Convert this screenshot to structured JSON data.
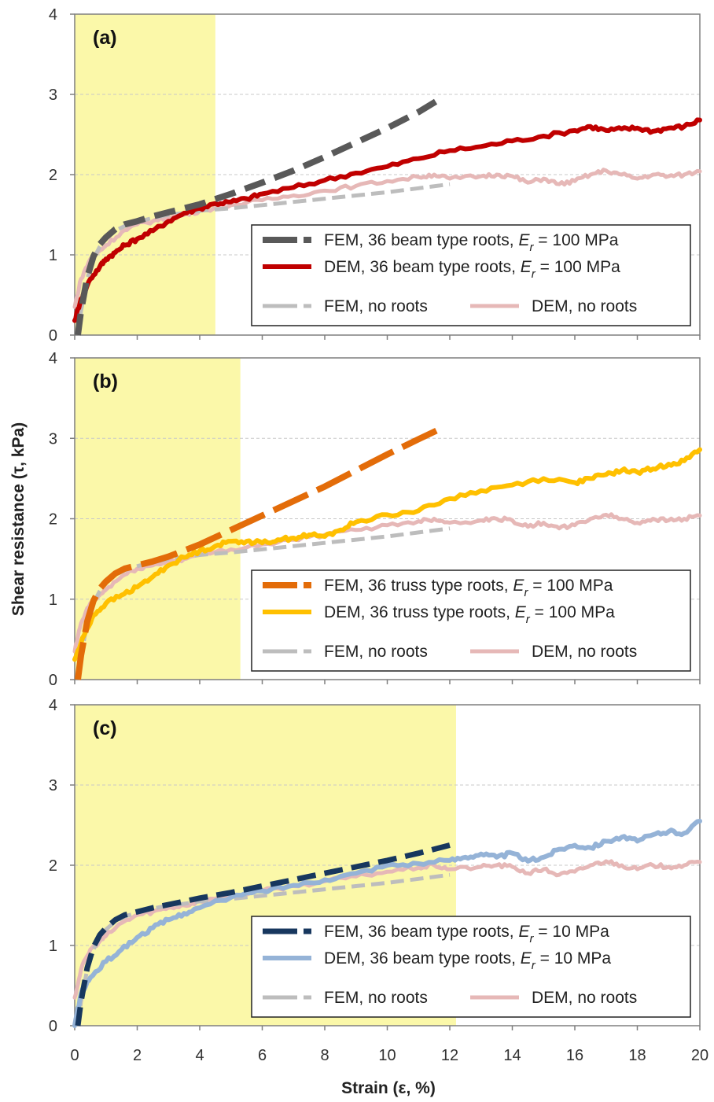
{
  "figure": {
    "ylabel": "Shear resistance (τ, kPa)",
    "xlabel": "Strain (ε, %)"
  },
  "chart_data": [
    {
      "type": "line",
      "panel_label": "(a)",
      "xlim": [
        0,
        20
      ],
      "ylim": [
        0,
        4
      ],
      "x_ticks": [
        0,
        2,
        4,
        6,
        8,
        10,
        12,
        14,
        16,
        18,
        20
      ],
      "y_ticks": [
        0,
        1,
        2,
        3,
        4
      ],
      "grid": "horizontal dashed",
      "highlight_band": {
        "x_from": 0,
        "x_to": 4.5,
        "color": "#fbf8a9"
      },
      "legend_position": "lower-right",
      "series": [
        {
          "legend_text": "FEM, 36 beam type roots, ",
          "legend_suffix": " = 100 MPa",
          "legend_row": 0,
          "legend_col": 0,
          "color": "#595959",
          "style": "fem",
          "width": 8,
          "x": [
            0.1,
            0.2,
            0.4,
            0.6,
            0.8,
            1.0,
            1.3,
            1.6,
            2.0,
            2.5,
            3.0,
            3.5,
            4.0,
            5.0,
            6.0,
            7.0,
            8.0,
            9.0,
            10.0,
            11.0,
            11.8
          ],
          "y": [
            0.0,
            0.3,
            0.72,
            0.98,
            1.13,
            1.22,
            1.32,
            1.38,
            1.42,
            1.48,
            1.53,
            1.58,
            1.63,
            1.76,
            1.9,
            2.05,
            2.22,
            2.4,
            2.58,
            2.78,
            2.97
          ]
        },
        {
          "legend_text": "DEM, 36 beam type roots, ",
          "legend_suffix": " = 100 MPa",
          "legend_row": 1,
          "legend_col": 0,
          "color": "#c00000",
          "style": "dem",
          "width": 6,
          "x": [
            0,
            0.2,
            0.5,
            0.8,
            1.0,
            1.3,
            1.6,
            2.0,
            2.5,
            3.0,
            3.5,
            4.0,
            4.5,
            5.0,
            5.5,
            6.0,
            7.0,
            8.0,
            9.0,
            10.0,
            11.0,
            12.0,
            13.0,
            14.0,
            15.0,
            16.0,
            16.5,
            17.0,
            17.5,
            18.0,
            18.5,
            19.0,
            19.5,
            20.0
          ],
          "y": [
            0.18,
            0.45,
            0.7,
            0.85,
            0.95,
            1.03,
            1.12,
            1.2,
            1.3,
            1.42,
            1.52,
            1.58,
            1.64,
            1.66,
            1.7,
            1.76,
            1.84,
            1.93,
            2.02,
            2.1,
            2.2,
            2.3,
            2.35,
            2.42,
            2.48,
            2.55,
            2.6,
            2.55,
            2.57,
            2.58,
            2.54,
            2.58,
            2.6,
            2.68
          ]
        },
        {
          "legend_text": "FEM, no roots",
          "legend_suffix": "",
          "legend_row": 2,
          "legend_col": 0,
          "color": "#bdbdbd",
          "style": "fem",
          "width": 5,
          "x": [
            0.1,
            0.2,
            0.4,
            0.6,
            0.8,
            1.0,
            1.3,
            1.6,
            2.0,
            2.5,
            3.0,
            3.5,
            4.0,
            5.0,
            6.0,
            7.0,
            8.0,
            9.0,
            10.0,
            11.0,
            12.0
          ],
          "y": [
            0.0,
            0.3,
            0.7,
            0.95,
            1.1,
            1.2,
            1.3,
            1.36,
            1.41,
            1.46,
            1.5,
            1.52,
            1.55,
            1.58,
            1.62,
            1.66,
            1.7,
            1.74,
            1.78,
            1.83,
            1.88
          ]
        },
        {
          "legend_text": "DEM, no roots",
          "legend_suffix": "",
          "legend_row": 2,
          "legend_col": 1,
          "color": "#e6b8b7",
          "style": "dem",
          "width": 5,
          "x": [
            0,
            0.2,
            0.5,
            0.8,
            1.0,
            1.5,
            2.0,
            2.5,
            3.0,
            3.5,
            4.0,
            5.0,
            6.0,
            7.0,
            8.0,
            9.0,
            10.0,
            11.0,
            11.5,
            12.0,
            13.0,
            13.5,
            14.0,
            14.5,
            15.0,
            15.5,
            16.0,
            16.5,
            17.0,
            17.5,
            18.0,
            18.5,
            19.0,
            19.5,
            20.0
          ],
          "y": [
            0.35,
            0.7,
            0.95,
            1.05,
            1.12,
            1.28,
            1.38,
            1.42,
            1.47,
            1.5,
            1.55,
            1.62,
            1.68,
            1.74,
            1.8,
            1.86,
            1.92,
            1.97,
            2.0,
            1.95,
            1.98,
            2.0,
            1.98,
            1.9,
            1.95,
            1.88,
            1.92,
            2.0,
            2.05,
            2.0,
            1.95,
            2.0,
            1.98,
            2.0,
            2.04
          ]
        }
      ]
    },
    {
      "type": "line",
      "panel_label": "(b)",
      "xlim": [
        0,
        20
      ],
      "ylim": [
        0,
        4
      ],
      "x_ticks": [
        0,
        2,
        4,
        6,
        8,
        10,
        12,
        14,
        16,
        18,
        20
      ],
      "y_ticks": [
        0,
        1,
        2,
        3,
        4
      ],
      "grid": "horizontal dashed",
      "highlight_band": {
        "x_from": 0,
        "x_to": 5.3,
        "color": "#fbf8a9"
      },
      "legend_position": "lower-right",
      "series": [
        {
          "legend_text": "FEM, 36 truss type roots, ",
          "legend_suffix": " = 100 MPa",
          "legend_row": 0,
          "legend_col": 0,
          "color": "#e36c09",
          "style": "fem_long",
          "width": 8,
          "x": [
            0.1,
            0.2,
            0.4,
            0.6,
            0.8,
            1.0,
            1.3,
            1.6,
            2.0,
            2.5,
            3.0,
            4.0,
            5.0,
            6.0,
            7.0,
            8.0,
            9.0,
            10.0,
            11.0,
            11.6
          ],
          "y": [
            0.0,
            0.3,
            0.72,
            0.98,
            1.13,
            1.22,
            1.32,
            1.38,
            1.42,
            1.47,
            1.53,
            1.68,
            1.86,
            2.04,
            2.22,
            2.4,
            2.6,
            2.8,
            2.99,
            3.1
          ]
        },
        {
          "legend_text": "DEM, 36 truss type roots, ",
          "legend_suffix": " = 100 MPa",
          "legend_row": 1,
          "legend_col": 0,
          "color": "#ffc000",
          "style": "dem",
          "width": 6,
          "x": [
            0,
            0.3,
            0.6,
            1.0,
            1.5,
            2.0,
            2.5,
            3.0,
            3.5,
            4.0,
            4.5,
            5.0,
            5.5,
            6.0,
            6.5,
            7.0,
            7.5,
            8.0,
            8.5,
            9.0,
            10.0,
            11.0,
            12.0,
            13.0,
            14.0,
            15.0,
            16.0,
            16.5,
            17.0,
            17.5,
            18.0,
            18.5,
            19.0,
            19.5,
            20.0
          ],
          "y": [
            0.25,
            0.55,
            0.8,
            0.95,
            1.05,
            1.15,
            1.28,
            1.42,
            1.52,
            1.6,
            1.66,
            1.72,
            1.72,
            1.7,
            1.74,
            1.76,
            1.8,
            1.78,
            1.86,
            1.96,
            2.05,
            2.1,
            2.25,
            2.35,
            2.42,
            2.5,
            2.45,
            2.5,
            2.55,
            2.6,
            2.58,
            2.62,
            2.68,
            2.72,
            2.86
          ]
        },
        {
          "legend_text": "FEM, no roots",
          "legend_suffix": "",
          "legend_row": 2,
          "legend_col": 0,
          "color": "#bdbdbd",
          "style": "fem",
          "width": 5,
          "x": [
            0.1,
            0.2,
            0.4,
            0.6,
            0.8,
            1.0,
            1.3,
            1.6,
            2.0,
            2.5,
            3.0,
            3.5,
            4.0,
            5.0,
            6.0,
            7.0,
            8.0,
            9.0,
            10.0,
            11.0,
            12.0
          ],
          "y": [
            0.0,
            0.3,
            0.7,
            0.95,
            1.1,
            1.2,
            1.3,
            1.36,
            1.41,
            1.46,
            1.5,
            1.52,
            1.55,
            1.58,
            1.62,
            1.66,
            1.7,
            1.74,
            1.78,
            1.83,
            1.88
          ]
        },
        {
          "legend_text": "DEM, no roots",
          "legend_suffix": "",
          "legend_row": 2,
          "legend_col": 1,
          "color": "#e6b8b7",
          "style": "dem",
          "width": 5,
          "x": [
            0,
            0.2,
            0.5,
            0.8,
            1.0,
            1.5,
            2.0,
            2.5,
            3.0,
            3.5,
            4.0,
            5.0,
            6.0,
            7.0,
            8.0,
            9.0,
            10.0,
            11.0,
            11.5,
            12.0,
            13.0,
            13.5,
            14.0,
            14.5,
            15.0,
            15.5,
            16.0,
            16.5,
            17.0,
            17.5,
            18.0,
            18.5,
            19.0,
            19.5,
            20.0
          ],
          "y": [
            0.35,
            0.7,
            0.95,
            1.05,
            1.12,
            1.28,
            1.38,
            1.42,
            1.47,
            1.5,
            1.55,
            1.62,
            1.68,
            1.74,
            1.8,
            1.86,
            1.92,
            1.97,
            2.0,
            1.95,
            1.98,
            2.0,
            1.98,
            1.9,
            1.95,
            1.88,
            1.92,
            2.0,
            2.05,
            2.0,
            1.95,
            2.0,
            1.98,
            2.0,
            2.04
          ]
        }
      ]
    },
    {
      "type": "line",
      "panel_label": "(c)",
      "xlim": [
        0,
        20
      ],
      "ylim": [
        0,
        4
      ],
      "x_ticks": [
        0,
        2,
        4,
        6,
        8,
        10,
        12,
        14,
        16,
        18,
        20
      ],
      "y_ticks": [
        0,
        1,
        2,
        3,
        4
      ],
      "x_tick_labels_shown": true,
      "grid": "horizontal dashed",
      "highlight_band": {
        "x_from": 0,
        "x_to": 12.2,
        "color": "#fbf8a9"
      },
      "legend_position": "lower-right",
      "series": [
        {
          "legend_text": "FEM, 36 beam type roots, ",
          "legend_suffix": " = 10 MPa",
          "legend_row": 0,
          "legend_col": 0,
          "color": "#17375e",
          "style": "fem",
          "width": 7,
          "x": [
            0.1,
            0.2,
            0.4,
            0.6,
            0.8,
            1.0,
            1.3,
            1.6,
            2.0,
            2.5,
            3.0,
            3.5,
            4.0,
            5.0,
            6.0,
            7.0,
            8.0,
            9.0,
            10.0,
            11.0,
            12.0
          ],
          "y": [
            0.0,
            0.3,
            0.72,
            0.98,
            1.13,
            1.22,
            1.32,
            1.38,
            1.42,
            1.47,
            1.51,
            1.55,
            1.59,
            1.66,
            1.74,
            1.82,
            1.9,
            1.98,
            2.06,
            2.15,
            2.25
          ]
        },
        {
          "legend_text": "DEM, 36 beam type roots, ",
          "legend_suffix": " = 10 MPa",
          "legend_row": 1,
          "legend_col": 0,
          "color": "#95b3d7",
          "style": "dem",
          "width": 6,
          "x": [
            0,
            0.2,
            0.5,
            1.0,
            1.5,
            2.0,
            2.5,
            3.0,
            3.5,
            4.0,
            5.0,
            6.0,
            7.0,
            8.0,
            9.0,
            10.0,
            11.0,
            12.0,
            12.5,
            13.0,
            13.5,
            14.0,
            14.5,
            15.0,
            15.5,
            16.0,
            16.5,
            17.0,
            17.5,
            18.0,
            18.5,
            19.0,
            19.5,
            20.0
          ],
          "y": [
            0.0,
            0.4,
            0.6,
            0.8,
            0.95,
            1.1,
            1.22,
            1.32,
            1.4,
            1.47,
            1.6,
            1.68,
            1.75,
            1.82,
            1.9,
            2.0,
            2.02,
            2.06,
            2.1,
            2.14,
            2.1,
            2.15,
            2.05,
            2.1,
            2.2,
            2.25,
            2.22,
            2.3,
            2.35,
            2.3,
            2.38,
            2.42,
            2.4,
            2.55
          ]
        },
        {
          "legend_text": "FEM, no roots",
          "legend_suffix": "",
          "legend_row": 2,
          "legend_col": 0,
          "color": "#bdbdbd",
          "style": "fem",
          "width": 5,
          "x": [
            0.1,
            0.2,
            0.4,
            0.6,
            0.8,
            1.0,
            1.3,
            1.6,
            2.0,
            2.5,
            3.0,
            3.5,
            4.0,
            5.0,
            6.0,
            7.0,
            8.0,
            9.0,
            10.0,
            11.0,
            12.0
          ],
          "y": [
            0.0,
            0.3,
            0.7,
            0.95,
            1.1,
            1.2,
            1.3,
            1.36,
            1.41,
            1.46,
            1.5,
            1.52,
            1.55,
            1.58,
            1.62,
            1.66,
            1.7,
            1.74,
            1.78,
            1.83,
            1.88
          ]
        },
        {
          "legend_text": "DEM, no roots",
          "legend_suffix": "",
          "legend_row": 2,
          "legend_col": 1,
          "color": "#e6b8b7",
          "style": "dem",
          "width": 5,
          "x": [
            0,
            0.2,
            0.5,
            0.8,
            1.0,
            1.5,
            2.0,
            2.5,
            3.0,
            3.5,
            4.0,
            5.0,
            6.0,
            7.0,
            8.0,
            9.0,
            10.0,
            11.0,
            11.5,
            12.0,
            13.0,
            13.5,
            14.0,
            14.5,
            15.0,
            15.5,
            16.0,
            16.5,
            17.0,
            17.5,
            18.0,
            18.5,
            19.0,
            19.5,
            20.0
          ],
          "y": [
            0.35,
            0.7,
            0.95,
            1.05,
            1.12,
            1.28,
            1.38,
            1.42,
            1.47,
            1.5,
            1.55,
            1.62,
            1.68,
            1.74,
            1.8,
            1.86,
            1.92,
            1.97,
            2.0,
            1.95,
            1.98,
            2.0,
            1.98,
            1.9,
            1.95,
            1.88,
            1.92,
            2.0,
            2.05,
            2.0,
            1.95,
            2.0,
            1.98,
            2.0,
            2.04
          ]
        }
      ]
    }
  ]
}
